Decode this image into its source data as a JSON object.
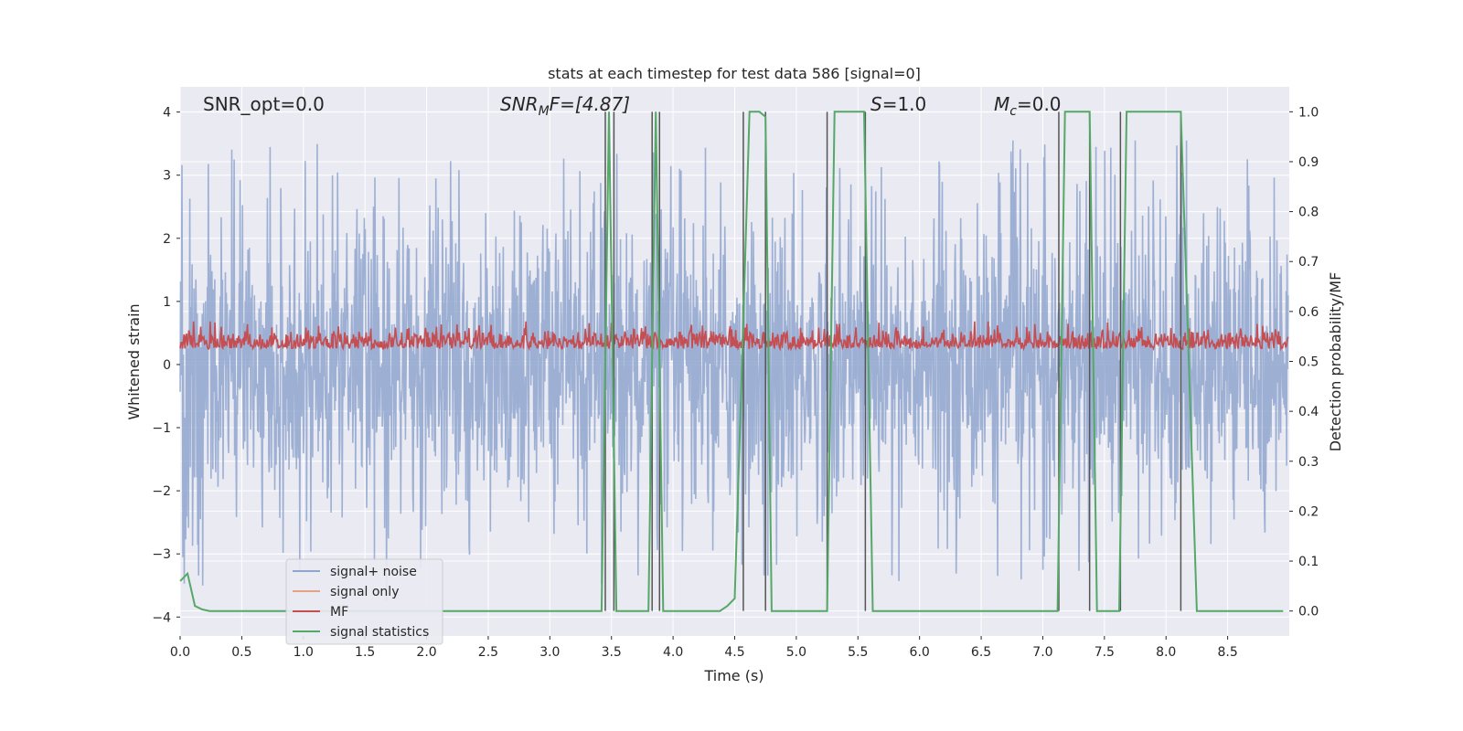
{
  "chart_data": {
    "type": "line",
    "title": "stats at each timestep for test data 586 [signal=0]",
    "xlabel": "Time (s)",
    "ylabel": "Whitened strain",
    "y2label": "Detection probability/MF",
    "xlim": [
      0.0,
      9.0
    ],
    "ylim": [
      -4.3,
      4.4
    ],
    "y2lim": [
      -0.05,
      1.05
    ],
    "xticks": [
      0.0,
      0.5,
      1.0,
      1.5,
      2.0,
      2.5,
      3.0,
      3.5,
      4.0,
      4.5,
      5.0,
      5.5,
      6.0,
      6.5,
      7.0,
      7.5,
      8.0,
      8.5
    ],
    "xtick_labels": [
      "0.0",
      "0.5",
      "1.0",
      "1.5",
      "2.0",
      "2.5",
      "3.0",
      "3.5",
      "4.0",
      "4.5",
      "5.0",
      "5.5",
      "6.0",
      "6.5",
      "7.0",
      "7.5",
      "8.0",
      "8.5"
    ],
    "yticks": [
      4,
      3,
      2,
      1,
      0,
      -1,
      -2,
      -3,
      -4
    ],
    "ytick_labels": [
      "4",
      "3",
      "2",
      "1",
      "0",
      "−1",
      "−2",
      "−3",
      "−4"
    ],
    "y2ticks": [
      1.0,
      0.9,
      0.8,
      0.7,
      0.6,
      0.5,
      0.4,
      0.3,
      0.2,
      0.1,
      0.0
    ],
    "y2tick_labels": [
      "1.0",
      "0.9",
      "0.8",
      "0.7",
      "0.6",
      "0.5",
      "0.4",
      "0.3",
      "0.2",
      "0.1",
      "0.0"
    ],
    "grid": true,
    "legend_position": "bottom-left",
    "annotations": {
      "snr_opt": "SNR_opt=0.0",
      "snr_mf_main": "SNR",
      "snr_mf_sub": "M",
      "snr_mf_rest": "F=[4.87]",
      "s_main": "S",
      "s_rest": "=1.0",
      "mc_main": "M",
      "mc_sub": "c",
      "mc_rest": "=0.0"
    },
    "series": [
      {
        "name": "signal+ noise",
        "color": "#8fa6cf",
        "note": "noise band roughly ±2.5 with spikes to ±3.5"
      },
      {
        "name": "signal only",
        "color": "#e7a185"
      },
      {
        "name": "MF",
        "color": "#c44e52",
        "range": [
          0.0,
          0.8
        ]
      },
      {
        "name": "signal statistics",
        "color": "#55a868",
        "x": [
          0.0,
          0.06,
          0.12,
          0.18,
          0.24,
          3.42,
          3.48,
          3.54,
          3.8,
          3.86,
          3.92,
          4.38,
          4.44,
          4.5,
          4.56,
          4.62,
          4.7,
          4.75,
          4.8,
          5.25,
          5.31,
          5.55,
          5.62,
          7.12,
          7.18,
          7.38,
          7.44,
          7.62,
          7.68,
          8.12,
          8.25,
          8.95
        ],
        "y": [
          0.06,
          0.075,
          0.01,
          0.003,
          0.0,
          0.0,
          1.0,
          0.0,
          0.0,
          1.0,
          0.0,
          0.0,
          0.01,
          0.025,
          0.5,
          1.0,
          1.0,
          0.99,
          0.0,
          0.0,
          1.0,
          1.0,
          0.0,
          0.0,
          1.0,
          1.0,
          0.0,
          0.0,
          1.0,
          1.0,
          0.0,
          0.0
        ]
      },
      {
        "name": "",
        "color": "#555555",
        "type": "vlines",
        "x": [
          3.45,
          3.52,
          3.83,
          3.89,
          4.57,
          4.75,
          5.25,
          5.56,
          7.13,
          7.38,
          7.63,
          8.12
        ]
      }
    ]
  }
}
